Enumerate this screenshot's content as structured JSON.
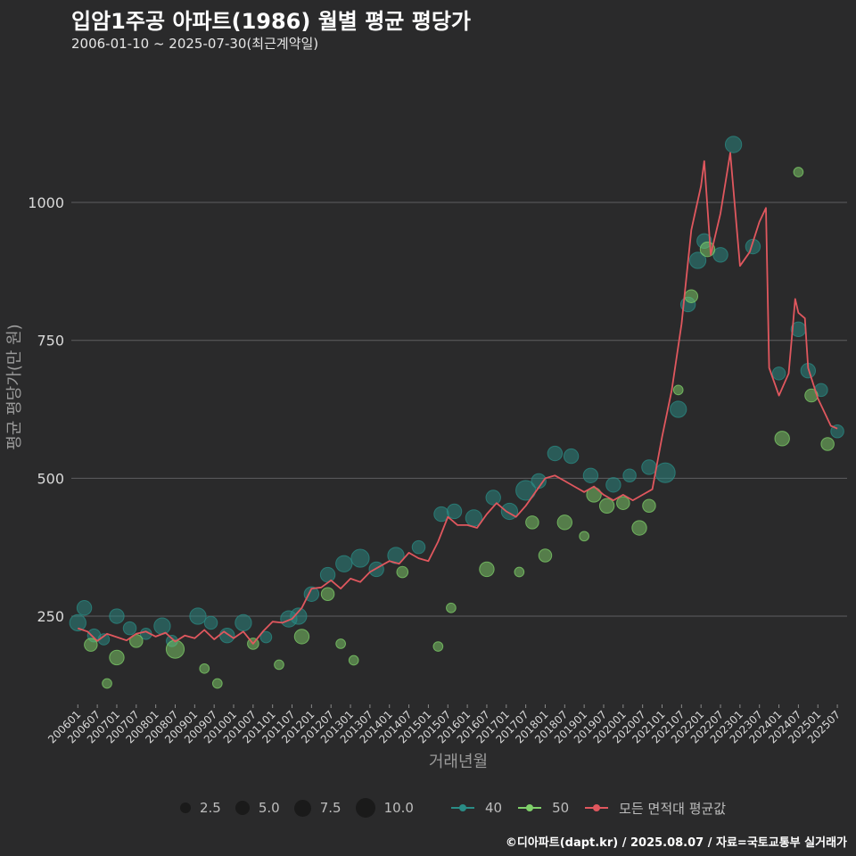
{
  "header": {
    "title": "입암1주공 아파트(1986) 월별 평균 평당가",
    "subtitle": "2006-01-10 ~ 2025-07-30(최근계약일)"
  },
  "caption": "©디아파트(dapt.kr) / 2025.08.07 / 자료=국토교통부 실거래가",
  "colors": {
    "background": "#2a2a2b",
    "grid": "#5e5e60",
    "series_40": "#2a8c86",
    "series_50": "#7fd06a",
    "series_avg": "#e0575e"
  },
  "legend": {
    "size_labels": [
      "2.5",
      "5.0",
      "7.5",
      "10.0"
    ],
    "series_labels": [
      "40",
      "50",
      "모든 면적대 평균값"
    ]
  },
  "chart_data": {
    "type": "line",
    "xlabel": "거래년월",
    "ylabel": "평균 평당가(만 원)",
    "ylim": [
      90,
      1270
    ],
    "yticks": [
      250,
      500,
      750,
      1000
    ],
    "xlim": [
      "2005-11",
      "2025-10"
    ],
    "xticks": [
      "200601",
      "200607",
      "200701",
      "200707",
      "200801",
      "200807",
      "200901",
      "200907",
      "201001",
      "201007",
      "201101",
      "201107",
      "201201",
      "201207",
      "201301",
      "201307",
      "201401",
      "201407",
      "201501",
      "201507",
      "201601",
      "201607",
      "201701",
      "201707",
      "201801",
      "201807",
      "201901",
      "201907",
      "202001",
      "202007",
      "202101",
      "202107",
      "202201",
      "202207",
      "202301",
      "202307",
      "202401",
      "202407",
      "202501",
      "202507"
    ],
    "grid": true,
    "series": [
      {
        "name": "모든 면적대 평균값",
        "kind": "line",
        "points": [
          [
            "2006-01",
            228
          ],
          [
            "2006-04",
            222
          ],
          [
            "2006-07",
            205
          ],
          [
            "2006-10",
            218
          ],
          [
            "2007-01",
            212
          ],
          [
            "2007-04",
            206
          ],
          [
            "2007-07",
            218
          ],
          [
            "2007-10",
            222
          ],
          [
            "2008-01",
            213
          ],
          [
            "2008-04",
            220
          ],
          [
            "2008-07",
            204
          ],
          [
            "2008-10",
            215
          ],
          [
            "2009-01",
            210
          ],
          [
            "2009-04",
            225
          ],
          [
            "2009-07",
            208
          ],
          [
            "2009-10",
            222
          ],
          [
            "2010-01",
            210
          ],
          [
            "2010-04",
            222
          ],
          [
            "2010-07",
            200
          ],
          [
            "2010-10",
            222
          ],
          [
            "2011-01",
            240
          ],
          [
            "2011-04",
            238
          ],
          [
            "2011-07",
            245
          ],
          [
            "2011-10",
            265
          ],
          [
            "2012-01",
            300
          ],
          [
            "2012-04",
            302
          ],
          [
            "2012-07",
            315
          ],
          [
            "2012-10",
            300
          ],
          [
            "2013-01",
            318
          ],
          [
            "2013-04",
            312
          ],
          [
            "2013-07",
            330
          ],
          [
            "2013-10",
            340
          ],
          [
            "2014-01",
            350
          ],
          [
            "2014-04",
            345
          ],
          [
            "2014-07",
            365
          ],
          [
            "2014-10",
            355
          ],
          [
            "2015-01",
            350
          ],
          [
            "2015-04",
            385
          ],
          [
            "2015-07",
            430
          ],
          [
            "2015-10",
            415
          ],
          [
            "2016-01",
            415
          ],
          [
            "2016-04",
            410
          ],
          [
            "2016-07",
            435
          ],
          [
            "2016-10",
            455
          ],
          [
            "2017-01",
            440
          ],
          [
            "2017-04",
            430
          ],
          [
            "2017-07",
            450
          ],
          [
            "2017-10",
            475
          ],
          [
            "2018-01",
            500
          ],
          [
            "2018-04",
            505
          ],
          [
            "2018-07",
            495
          ],
          [
            "2018-10",
            485
          ],
          [
            "2019-01",
            475
          ],
          [
            "2019-04",
            485
          ],
          [
            "2019-07",
            470
          ],
          [
            "2019-10",
            460
          ],
          [
            "2020-01",
            470
          ],
          [
            "2020-04",
            460
          ],
          [
            "2020-07",
            470
          ],
          [
            "2020-10",
            480
          ],
          [
            "2021-01",
            575
          ],
          [
            "2021-04",
            660
          ],
          [
            "2021-07",
            780
          ],
          [
            "2021-10",
            950
          ],
          [
            "2022-01",
            1030
          ],
          [
            "2022-02",
            1075
          ],
          [
            "2022-04",
            905
          ],
          [
            "2022-07",
            980
          ],
          [
            "2022-10",
            1090
          ],
          [
            "2023-01",
            885
          ],
          [
            "2023-04",
            910
          ],
          [
            "2023-07",
            965
          ],
          [
            "2023-09",
            990
          ],
          [
            "2023-10",
            700
          ],
          [
            "2024-01",
            650
          ],
          [
            "2024-04",
            690
          ],
          [
            "2024-06",
            825
          ],
          [
            "2024-07",
            800
          ],
          [
            "2024-09",
            790
          ],
          [
            "2024-10",
            700
          ],
          [
            "2025-01",
            645
          ],
          [
            "2025-03",
            620
          ],
          [
            "2025-05",
            595
          ],
          [
            "2025-07",
            590
          ]
        ]
      },
      {
        "name": "40",
        "kind": "scatter",
        "points": [
          [
            "2006-01",
            238,
            3.5
          ],
          [
            "2006-03",
            265,
            3.0
          ],
          [
            "2006-06",
            215,
            2.5
          ],
          [
            "2006-09",
            208,
            2.0
          ],
          [
            "2007-01",
            250,
            3.0
          ],
          [
            "2007-05",
            228,
            2.5
          ],
          [
            "2007-10",
            218,
            2.0
          ],
          [
            "2008-03",
            232,
            3.5
          ],
          [
            "2008-06",
            205,
            2.0
          ],
          [
            "2009-02",
            250,
            3.5
          ],
          [
            "2009-06",
            238,
            2.5
          ],
          [
            "2009-11",
            215,
            3.0
          ],
          [
            "2010-04",
            238,
            3.5
          ],
          [
            "2010-11",
            212,
            2.0
          ],
          [
            "2011-06",
            245,
            3.5
          ],
          [
            "2011-09",
            250,
            3.5
          ],
          [
            "2012-01",
            290,
            3.0
          ],
          [
            "2012-06",
            325,
            3.0
          ],
          [
            "2012-11",
            345,
            3.5
          ],
          [
            "2013-04",
            355,
            4.0
          ],
          [
            "2013-09",
            335,
            3.0
          ],
          [
            "2014-03",
            360,
            3.5
          ],
          [
            "2014-10",
            375,
            2.5
          ],
          [
            "2015-05",
            435,
            3.0
          ],
          [
            "2015-09",
            440,
            3.0
          ],
          [
            "2016-03",
            428,
            3.5
          ],
          [
            "2016-09",
            465,
            3.0
          ],
          [
            "2017-02",
            440,
            3.5
          ],
          [
            "2017-07",
            478,
            4.5
          ],
          [
            "2017-11",
            495,
            3.0
          ],
          [
            "2018-04",
            545,
            3.0
          ],
          [
            "2018-09",
            540,
            3.0
          ],
          [
            "2019-03",
            505,
            3.0
          ],
          [
            "2019-10",
            488,
            3.0
          ],
          [
            "2020-03",
            505,
            2.5
          ],
          [
            "2020-09",
            520,
            3.0
          ],
          [
            "2021-02",
            510,
            4.5
          ],
          [
            "2021-06",
            625,
            3.5
          ],
          [
            "2021-09",
            815,
            3.0
          ],
          [
            "2021-12",
            895,
            3.5
          ],
          [
            "2022-02",
            930,
            3.0
          ],
          [
            "2022-07",
            905,
            3.0
          ],
          [
            "2022-11",
            1105,
            3.5
          ],
          [
            "2023-05",
            920,
            3.0
          ],
          [
            "2024-01",
            690,
            2.5
          ],
          [
            "2024-07",
            770,
            3.0
          ],
          [
            "2024-10",
            695,
            3.0
          ],
          [
            "2025-02",
            660,
            2.5
          ],
          [
            "2025-07",
            585,
            2.5
          ]
        ]
      },
      {
        "name": "50",
        "kind": "scatter",
        "points": [
          [
            "2006-05",
            198,
            2.5
          ],
          [
            "2006-10",
            128,
            1.5
          ],
          [
            "2007-01",
            175,
            3.0
          ],
          [
            "2007-07",
            205,
            2.5
          ],
          [
            "2008-07",
            190,
            4.0
          ],
          [
            "2009-04",
            155,
            1.5
          ],
          [
            "2009-08",
            128,
            1.5
          ],
          [
            "2010-07",
            200,
            2.0
          ],
          [
            "2011-03",
            162,
            1.5
          ],
          [
            "2011-10",
            213,
            3.0
          ],
          [
            "2012-06",
            290,
            2.5
          ],
          [
            "2012-10",
            200,
            1.5
          ],
          [
            "2013-02",
            170,
            1.5
          ],
          [
            "2014-05",
            330,
            2.0
          ],
          [
            "2015-04",
            195,
            1.5
          ],
          [
            "2015-08",
            265,
            1.5
          ],
          [
            "2016-07",
            335,
            3.0
          ],
          [
            "2017-05",
            330,
            1.5
          ],
          [
            "2017-09",
            420,
            2.5
          ],
          [
            "2018-01",
            360,
            2.5
          ],
          [
            "2018-07",
            420,
            3.0
          ],
          [
            "2019-01",
            395,
            1.5
          ],
          [
            "2019-04",
            470,
            3.0
          ],
          [
            "2019-08",
            450,
            3.0
          ],
          [
            "2020-01",
            455,
            2.5
          ],
          [
            "2020-06",
            410,
            3.0
          ],
          [
            "2020-09",
            450,
            2.5
          ],
          [
            "2021-06",
            660,
            1.5
          ],
          [
            "2021-10",
            830,
            2.5
          ],
          [
            "2022-03",
            915,
            3.0
          ],
          [
            "2024-02",
            572,
            3.0
          ],
          [
            "2024-07",
            1055,
            1.5
          ],
          [
            "2024-11",
            650,
            2.5
          ],
          [
            "2025-04",
            562,
            2.5
          ]
        ]
      }
    ]
  }
}
